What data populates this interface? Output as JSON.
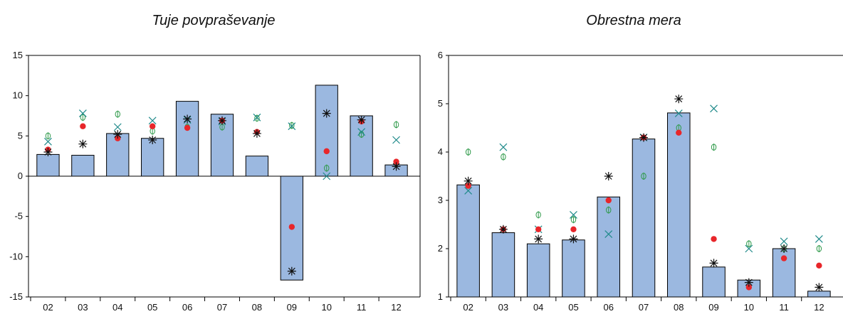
{
  "chart_data": [
    {
      "type": "bar",
      "title": "Tuje povpraševanje",
      "categories": [
        "02",
        "03",
        "04",
        "05",
        "06",
        "07",
        "08",
        "09",
        "10",
        "11",
        "12"
      ],
      "ylim": [
        -15,
        15
      ],
      "yticks": [
        -15,
        -10,
        -5,
        0,
        5,
        10,
        15
      ],
      "bars": [
        2.7,
        2.6,
        5.3,
        4.7,
        9.3,
        7.7,
        2.5,
        -12.9,
        11.3,
        7.5,
        1.4
      ],
      "markers": {
        "red_dot": [
          3.3,
          6.2,
          4.7,
          6.2,
          6.0,
          6.9,
          5.5,
          -6.3,
          3.1,
          6.8,
          1.8
        ],
        "green_circle": [
          5.0,
          7.3,
          7.7,
          5.6,
          6.1,
          6.1,
          7.2,
          6.3,
          1.0,
          5.2,
          6.4
        ],
        "teal_cross": [
          4.3,
          7.8,
          6.1,
          6.9,
          7.0,
          6.8,
          7.3,
          6.2,
          0.0,
          5.5,
          4.5
        ],
        "black_star": [
          3.0,
          4.0,
          5.2,
          4.5,
          7.1,
          6.9,
          5.3,
          -11.8,
          7.8,
          7.0,
          1.2
        ]
      }
    },
    {
      "type": "bar",
      "title": "Obrestna mera",
      "categories": [
        "02",
        "03",
        "04",
        "05",
        "06",
        "07",
        "08",
        "09",
        "10",
        "11",
        "12"
      ],
      "ylim": [
        1,
        6
      ],
      "yticks": [
        1,
        2,
        3,
        4,
        5,
        6
      ],
      "bars": [
        3.32,
        2.33,
        2.1,
        2.18,
        3.07,
        4.27,
        4.81,
        1.62,
        1.35,
        2.0,
        1.12
      ],
      "markers": {
        "red_dot": [
          3.3,
          2.4,
          2.4,
          2.4,
          3.0,
          4.3,
          4.4,
          2.2,
          1.2,
          1.8,
          1.65
        ],
        "green_circle": [
          4.0,
          3.9,
          2.7,
          2.6,
          2.8,
          3.5,
          4.5,
          4.1,
          2.1,
          2.0,
          2.0
        ],
        "teal_cross": [
          3.2,
          4.1,
          2.4,
          2.7,
          2.3,
          4.3,
          4.8,
          4.9,
          2.0,
          2.15,
          2.2
        ],
        "black_star": [
          3.4,
          2.4,
          2.2,
          2.2,
          3.5,
          4.3,
          5.1,
          1.7,
          1.3,
          2.0,
          1.2
        ]
      }
    }
  ],
  "colors": {
    "bar_fill": "#9bb8e0",
    "red_dot": "#e8262a",
    "green_circle": "#2f9a4a",
    "teal_cross": "#1f8a8a",
    "black_star": "#111111"
  }
}
